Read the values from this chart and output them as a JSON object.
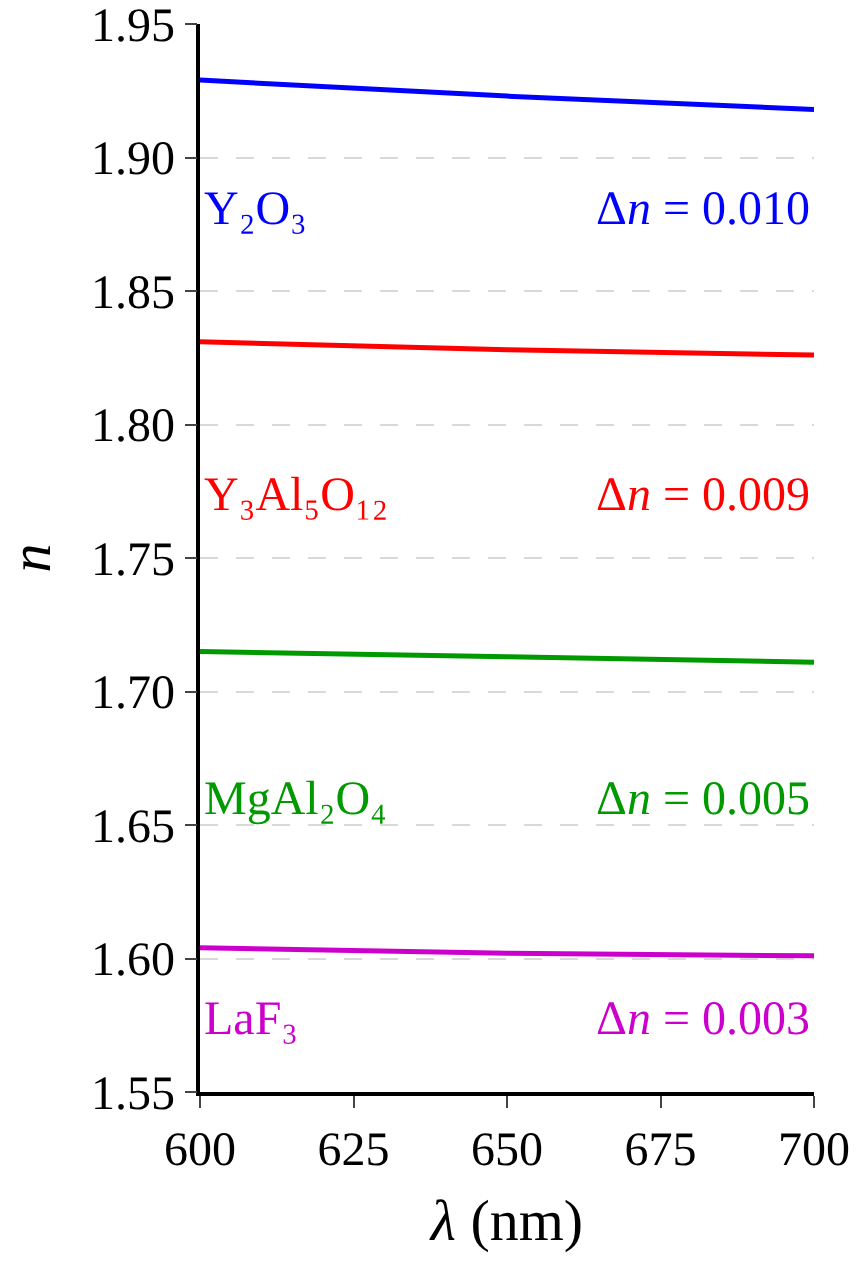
{
  "chart_data": {
    "type": "line",
    "xlabel": "λ (nm)",
    "ylabel": "n",
    "x": [
      600,
      650,
      700
    ],
    "series": [
      {
        "name": "Y₂O₃",
        "color": "#0000ff",
        "values": [
          1.929,
          1.923,
          1.918
        ]
      },
      {
        "name": "Y₃Al₅O₁₂",
        "color": "#ff0000",
        "values": [
          1.831,
          1.828,
          1.826
        ]
      },
      {
        "name": "MgAl₂O₄",
        "color": "#009900",
        "values": [
          1.715,
          1.713,
          1.711
        ]
      },
      {
        "name": "LaF₃",
        "color": "#cc00cc",
        "values": [
          1.604,
          1.602,
          1.601
        ]
      }
    ],
    "annotations": [
      "Δn = 0.010",
      "Δn = 0.009",
      "Δn = 0.005",
      "Δn = 0.003"
    ],
    "xlim": [
      600,
      700
    ],
    "xticks": [
      600,
      625,
      650,
      675,
      700
    ],
    "ylim": [
      1.55,
      1.95
    ],
    "yticks": [
      1.55,
      {
        "value": 1.6,
        "label": "1.60"
      },
      1.65,
      {
        "value": 1.7,
        "label": "1.70"
      },
      1.75,
      {
        "value": 1.8,
        "label": "1.80"
      },
      1.85,
      {
        "value": 1.9,
        "label": "1.90"
      },
      1.95
    ],
    "grid": "y",
    "legend": false,
    "marker": "none",
    "line_style": "solid"
  }
}
